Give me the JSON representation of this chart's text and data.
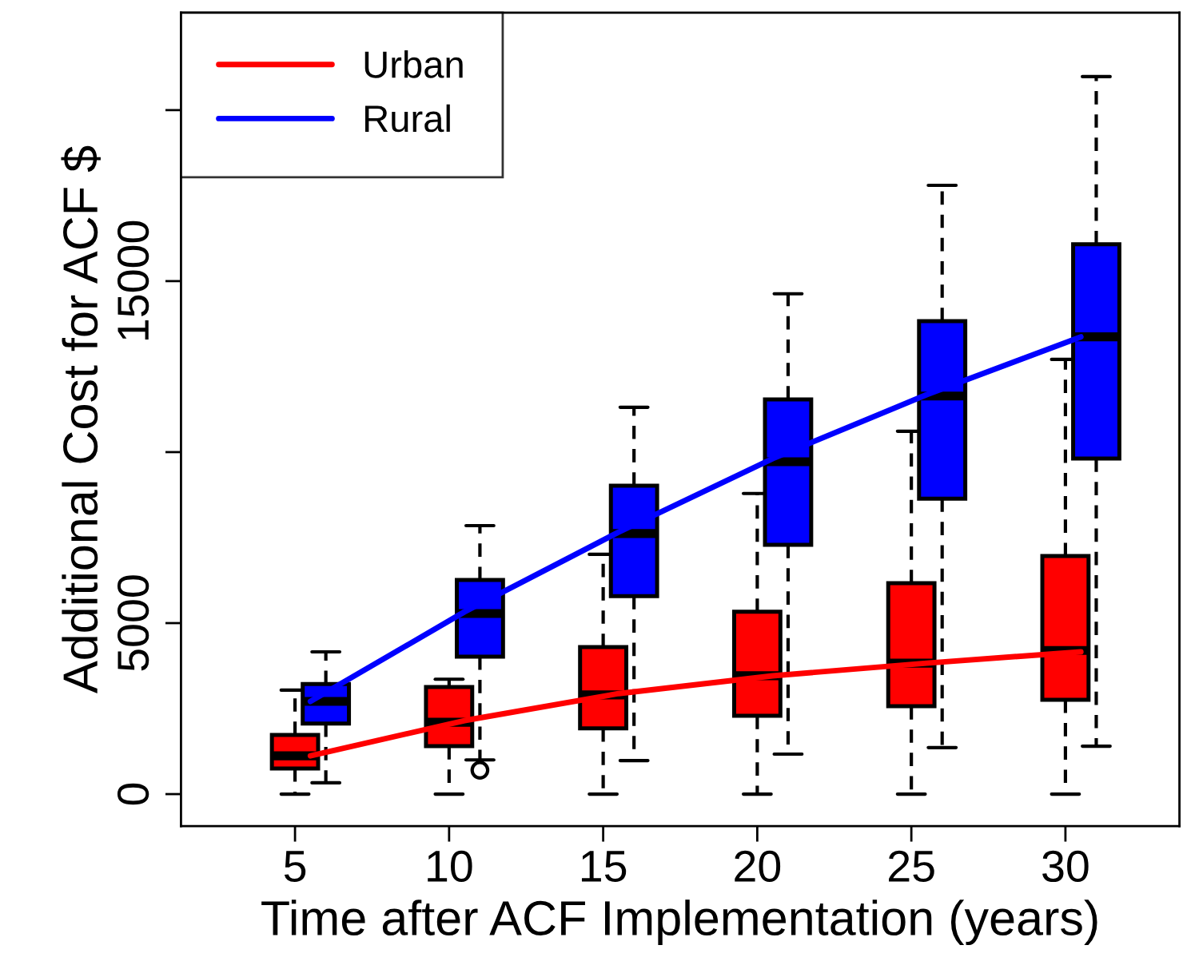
{
  "chart_data": {
    "type": "box",
    "xlabel": "Time after ACF Implementation (years)",
    "ylabel": "Additional Cost for ACF $",
    "xlim": [
      1.3,
      33.7
    ],
    "xticks": [
      5,
      10,
      15,
      20,
      25,
      30
    ],
    "ylim": [
      -935,
      22850
    ],
    "yticks": [
      0,
      5000,
      {
        "value": 10000,
        "label": null
      },
      15000,
      {
        "value": 20000,
        "label": null
      }
    ],
    "grid": false,
    "legend": "top left",
    "series": [
      {
        "type": "box",
        "color": "#ff0000",
        "x": [
          5,
          10,
          15,
          20,
          25,
          30
        ],
        "boxes": [
          {
            "low": 0,
            "q1": 750,
            "median": 1120,
            "q3": 1730,
            "high": 3040
          },
          {
            "low": 0,
            "q1": 1400,
            "median": 2100,
            "q3": 3130,
            "high": 3360
          },
          {
            "low": 0,
            "q1": 1920,
            "median": 2900,
            "q3": 4300,
            "high": 7010
          },
          {
            "low": 0,
            "q1": 2290,
            "median": 3460,
            "q3": 5330,
            "high": 8790
          },
          {
            "low": 0,
            "q1": 2570,
            "median": 3830,
            "q3": 6170,
            "high": 10610
          },
          {
            "low": 0,
            "q1": 2760,
            "median": 4200,
            "q3": 6960,
            "high": 12710
          }
        ]
      },
      {
        "type": "box",
        "color": "#0000ff",
        "x": [
          6,
          11,
          16,
          21,
          26,
          31
        ],
        "boxes": [
          {
            "low": 330,
            "q1": 2060,
            "median": 2710,
            "q3": 3220,
            "high": 4160
          },
          {
            "low": 1000,
            "q1": 4020,
            "median": 5280,
            "q3": 6260,
            "high": 7850,
            "outliers": [
              700
            ]
          },
          {
            "low": 980,
            "q1": 5790,
            "median": 7620,
            "q3": 9020,
            "high": 11310
          },
          {
            "low": 1170,
            "q1": 7290,
            "median": 9720,
            "q3": 11540,
            "high": 14630
          },
          {
            "low": 1360,
            "q1": 8640,
            "median": 11640,
            "q3": 13830,
            "high": 17800
          },
          {
            "low": 1400,
            "q1": 9810,
            "median": 13370,
            "q3": 16080,
            "high": 20980
          }
        ]
      },
      {
        "type": "line",
        "name": "Urban",
        "color": "#ff0000",
        "x": [
          5.5,
          10.5,
          15.5,
          20.5,
          25.5,
          30.5
        ],
        "values": [
          1120,
          2150,
          2940,
          3460,
          3830,
          4160
        ]
      },
      {
        "type": "line",
        "name": "Rural",
        "color": "#0000ff",
        "x": [
          5.5,
          10.5,
          15.5,
          20.5,
          25.5,
          30.5
        ],
        "values": [
          2710,
          5330,
          7660,
          9810,
          11680,
          13370
        ]
      }
    ]
  }
}
